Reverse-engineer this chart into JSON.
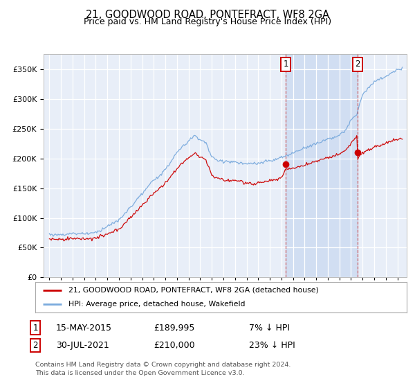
{
  "title": "21, GOODWOOD ROAD, PONTEFRACT, WF8 2GA",
  "subtitle": "Price paid vs. HM Land Registry's House Price Index (HPI)",
  "background_color": "#ffffff",
  "plot_bg_color": "#e8eef8",
  "grid_color": "#ffffff",
  "hpi_color": "#7aaadd",
  "sale_color": "#cc0000",
  "vline_color": "#cc3333",
  "shade_color": "#c8d8f0",
  "legend_line1": "21, GOODWOOD ROAD, PONTEFRACT, WF8 2GA (detached house)",
  "legend_line2": "HPI: Average price, detached house, Wakefield",
  "footer": "Contains HM Land Registry data © Crown copyright and database right 2024.\nThis data is licensed under the Open Government Licence v3.0.",
  "sale1_price": 189995,
  "sale2_price": 210000,
  "t1": 2015.37,
  "t2": 2021.58,
  "ylim_min": 0,
  "ylim_max": 375000,
  "xlim_min": 1994.5,
  "xlim_max": 2025.8,
  "yticks": [
    0,
    50000,
    100000,
    150000,
    200000,
    250000,
    300000,
    350000
  ]
}
